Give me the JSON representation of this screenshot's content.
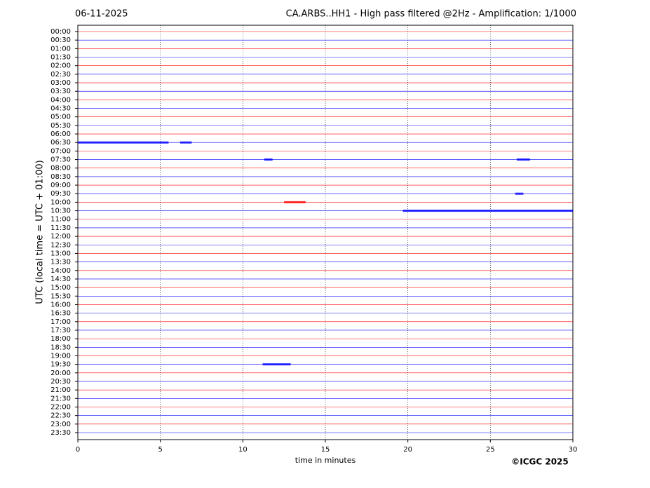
{
  "chart_data": {
    "type": "helicorder",
    "date": "06-11-2025",
    "title": "CA.ARBS..HH1 - High pass filtered @2Hz - Amplification: 1/1000",
    "ylabel": "UTC (local time = UTC + 01:00)",
    "xlabel": "time in minutes",
    "credit": "©ICGC 2025",
    "categories": [
      "00:00",
      "00:30",
      "01:00",
      "01:30",
      "02:00",
      "02:30",
      "03:00",
      "03:30",
      "04:00",
      "04:30",
      "05:00",
      "05:30",
      "06:00",
      "06:30",
      "07:00",
      "07:30",
      "08:00",
      "08:30",
      "09:00",
      "09:30",
      "10:00",
      "10:30",
      "11:00",
      "11:30",
      "12:00",
      "12:30",
      "13:00",
      "13:30",
      "14:00",
      "14:30",
      "15:00",
      "15:30",
      "16:00",
      "16:30",
      "17:00",
      "17:30",
      "18:00",
      "18:30",
      "19:00",
      "19:30",
      "20:00",
      "20:30",
      "21:00",
      "21:30",
      "22:00",
      "22:30",
      "23:00",
      "23:30"
    ],
    "colors": [
      "#ff0000",
      "#0000ff"
    ],
    "xlim": [
      0,
      30
    ],
    "xticks": [
      0,
      5,
      10,
      15,
      20,
      25,
      30
    ],
    "grid": true,
    "events": [
      {
        "row": "06:30",
        "x": [
          0,
          5.5
        ]
      },
      {
        "row": "06:30",
        "x": [
          6.2,
          6.9
        ]
      },
      {
        "row": "07:30",
        "x": [
          11.3,
          11.8
        ]
      },
      {
        "row": "07:30",
        "x": [
          26.6,
          27.4
        ]
      },
      {
        "row": "09:30",
        "x": [
          26.5,
          27
        ]
      },
      {
        "row": "10:00",
        "x": [
          12.5,
          13.8
        ]
      },
      {
        "row": "10:30",
        "x": [
          19.7,
          30
        ]
      },
      {
        "row": "19:30",
        "x": [
          11.2,
          12.9
        ]
      }
    ]
  }
}
